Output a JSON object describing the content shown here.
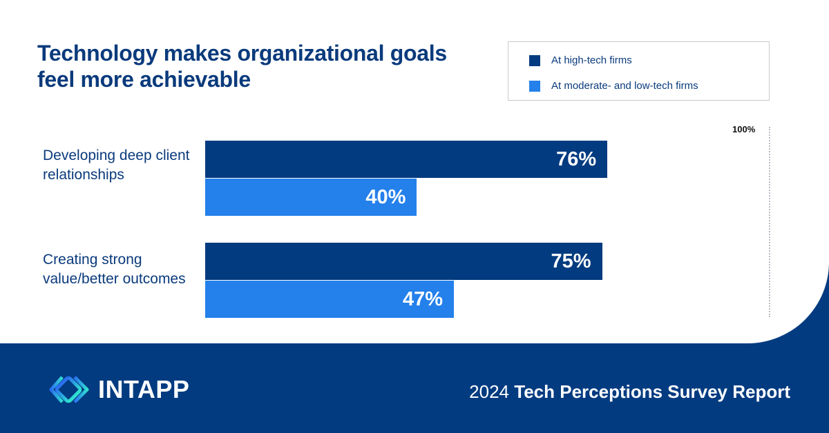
{
  "colors": {
    "high": "#023b80",
    "moderate": "#2480ea",
    "footer": "#023b80"
  },
  "chart_data": {
    "type": "bar",
    "orientation": "horizontal",
    "title": "Technology makes organizational goals feel more achievable",
    "categories": [
      "Developing deep client relationships",
      "Creating strong value/better outcomes"
    ],
    "series": [
      {
        "name": "At high-tech firms",
        "values": [
          76,
          75
        ]
      },
      {
        "name": "At moderate- and low-tech firms",
        "values": [
          40,
          47
        ]
      }
    ],
    "value_labels": [
      [
        "76%",
        "75%"
      ],
      [
        "40%",
        "47%"
      ]
    ],
    "xlim": [
      0,
      100
    ],
    "reference_label": "100%",
    "legend": "top-right"
  },
  "footer": {
    "brand": "INTAPP",
    "report_year": "2024",
    "report_title": "Tech Perceptions Survey Report"
  }
}
